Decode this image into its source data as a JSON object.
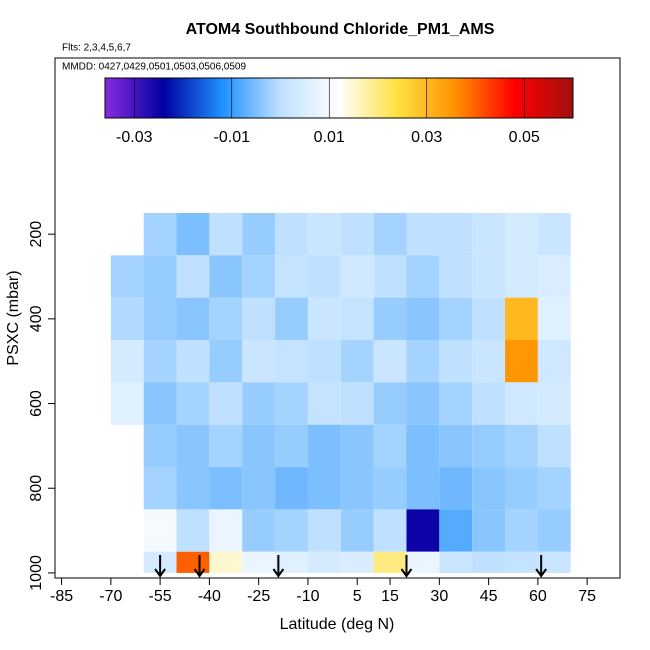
{
  "chart_data": {
    "type": "heatmap",
    "title": "ATOM4 Southbound Chloride_PM1_AMS",
    "annotations": [
      "Flts: 2,3,4,5,6,7",
      "MMDD: 0427,0429,0501,0503,0506,0509"
    ],
    "xlabel": "Latitude (deg N)",
    "ylabel": "PSXC (mbar)",
    "xlim": [
      -87,
      85
    ],
    "xticks": [
      -85,
      -70,
      -55,
      -40,
      -25,
      -10,
      5,
      15,
      30,
      45,
      60,
      75
    ],
    "ylim": [
      1012,
      -216
    ],
    "yticks": [
      200,
      400,
      600,
      800,
      1000
    ],
    "lat_edges": [
      -70,
      -60,
      -50,
      -40,
      -30,
      -20,
      -10,
      0,
      10,
      20,
      30,
      40,
      50,
      60,
      70
    ],
    "pressure_edges": [
      150,
      250,
      350,
      450,
      550,
      650,
      750,
      850,
      950,
      1000
    ],
    "values": [
      [
        null,
        -0.002,
        -0.005,
        0.0,
        -0.003,
        0.0,
        0.002,
        0.0,
        -0.002,
        0.0,
        0.0,
        0.002,
        0.004,
        0.002
      ],
      [
        -0.002,
        -0.003,
        0.0,
        -0.004,
        -0.002,
        0.001,
        0.0,
        0.003,
        0.0,
        -0.002,
        0.0,
        0.002,
        0.004,
        0.005
      ],
      [
        -0.001,
        -0.003,
        -0.004,
        -0.002,
        0.0,
        -0.003,
        0.002,
        0.001,
        -0.003,
        -0.004,
        -0.002,
        0.0,
        0.03,
        0.006
      ],
      [
        0.004,
        -0.002,
        0.0,
        -0.003,
        0.002,
        0.001,
        0.0,
        -0.002,
        0.002,
        -0.002,
        0.0,
        0.002,
        0.035,
        0.003
      ],
      [
        0.006,
        -0.004,
        -0.002,
        0.0,
        -0.003,
        -0.002,
        0.001,
        0.0,
        -0.003,
        -0.004,
        -0.002,
        0.0,
        0.003,
        0.004
      ],
      [
        null,
        -0.003,
        -0.004,
        -0.002,
        -0.004,
        -0.003,
        -0.005,
        -0.004,
        -0.002,
        -0.005,
        -0.004,
        -0.003,
        -0.002,
        0.0
      ],
      [
        null,
        -0.002,
        -0.004,
        -0.005,
        -0.004,
        -0.006,
        -0.005,
        -0.004,
        -0.003,
        -0.005,
        -0.006,
        -0.004,
        -0.003,
        -0.002
      ],
      [
        null,
        0.01,
        0.0,
        0.008,
        -0.003,
        -0.002,
        0.0,
        -0.003,
        0.0,
        -0.025,
        -0.008,
        -0.004,
        -0.002,
        -0.003
      ],
      [
        null,
        0.004,
        0.04,
        0.015,
        0.008,
        0.006,
        0.004,
        0.005,
        0.02,
        0.008,
        0.002,
        0.0,
        0.001,
        0.002
      ]
    ],
    "colorbar": {
      "clim": [
        -0.036,
        0.06
      ],
      "colors": [
        "#8a2be2",
        "#0000a0",
        "#1e90ff",
        "#bfe0ff",
        "#ffffff",
        "#ffe040",
        "#ff9000",
        "#ff0000",
        "#a01010"
      ],
      "ticks": [
        -0.03,
        -0.01,
        0.01,
        0.03,
        0.05
      ]
    },
    "arrow_lats": [
      -55,
      -43,
      -19,
      20,
      61
    ]
  }
}
